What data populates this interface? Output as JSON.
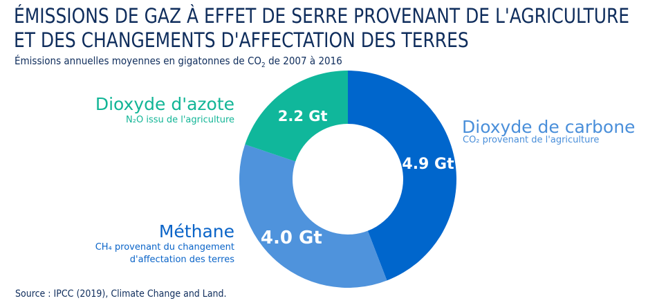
{
  "title_line1": "ÉMISSIONS DE GAZ À EFFET DE SERRE PROVENANT DE L'AGRICULTURE",
  "title_line2": "ET DES CHANGEMENTS D'AFFECTATION DES TERRES",
  "subtitle_pre": "Émissions annuelles moyennes en gigatonnes de CO",
  "subtitle_sub": "2",
  "subtitle_post": " de 2007 à 2016",
  "source": "Source : IPCC (2019), Climate Change and Land.",
  "chart_data": {
    "type": "pie",
    "variant": "donut",
    "unit": "Gt CO2",
    "slices": [
      {
        "name": "Dioxyde de carbone",
        "detail": "CO₂ provenant de l'agriculture",
        "value": 4.9,
        "label": "4.9 Gt",
        "color": "#0066cc",
        "text_color": "#4a8fda"
      },
      {
        "name": "Méthane",
        "detail_1": "CH₄ provenant du changement",
        "detail_2": "d'affectation des terres",
        "value": 4.0,
        "label": "4.0 Gt",
        "color": "#4f93dc",
        "text_color": "#0a64c8"
      },
      {
        "name": "Dioxyde d'azote",
        "detail": "N₂O  issu de l'agriculture",
        "value": 2.2,
        "label": "2.2 Gt",
        "color": "#10b79b",
        "text_color": "#12b596"
      }
    ]
  }
}
